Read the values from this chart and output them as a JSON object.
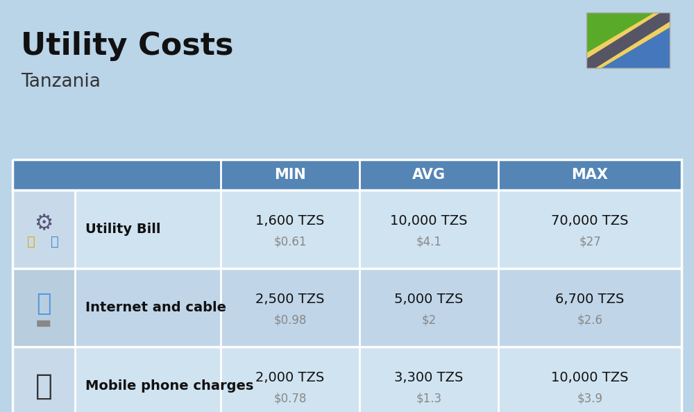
{
  "title": "Utility Costs",
  "subtitle": "Tanzania",
  "background_color": "#bad4e8",
  "header_bg_color": "#5585b5",
  "header_text_color": "#ffffff",
  "row_bg_even": "#d0e3f0",
  "row_bg_odd": "#c0d5e8",
  "icon_col_bg_even": "#c8daea",
  "icon_col_bg_odd": "#b8cede",
  "table_border_color": "#ffffff",
  "columns": [
    "",
    "",
    "MIN",
    "AVG",
    "MAX"
  ],
  "rows": [
    {
      "label": "Utility Bill",
      "min_tzs": "1,600 TZS",
      "min_usd": "$0.61",
      "avg_tzs": "10,000 TZS",
      "avg_usd": "$4.1",
      "max_tzs": "70,000 TZS",
      "max_usd": "$27"
    },
    {
      "label": "Internet and cable",
      "min_tzs": "2,500 TZS",
      "min_usd": "$0.98",
      "avg_tzs": "5,000 TZS",
      "avg_usd": "$2",
      "max_tzs": "6,700 TZS",
      "max_usd": "$2.6"
    },
    {
      "label": "Mobile phone charges",
      "min_tzs": "2,000 TZS",
      "min_usd": "$0.78",
      "avg_tzs": "3,300 TZS",
      "avg_usd": "$1.3",
      "max_tzs": "10,000 TZS",
      "max_usd": "$3.9"
    }
  ],
  "title_fontsize": 32,
  "subtitle_fontsize": 19,
  "header_fontsize": 15,
  "label_fontsize": 14,
  "value_fontsize": 14,
  "usd_fontsize": 12,
  "flag_green": "#5aaa2a",
  "flag_blue": "#4477bb",
  "flag_black": "#555566",
  "flag_yellow": "#f0d060"
}
